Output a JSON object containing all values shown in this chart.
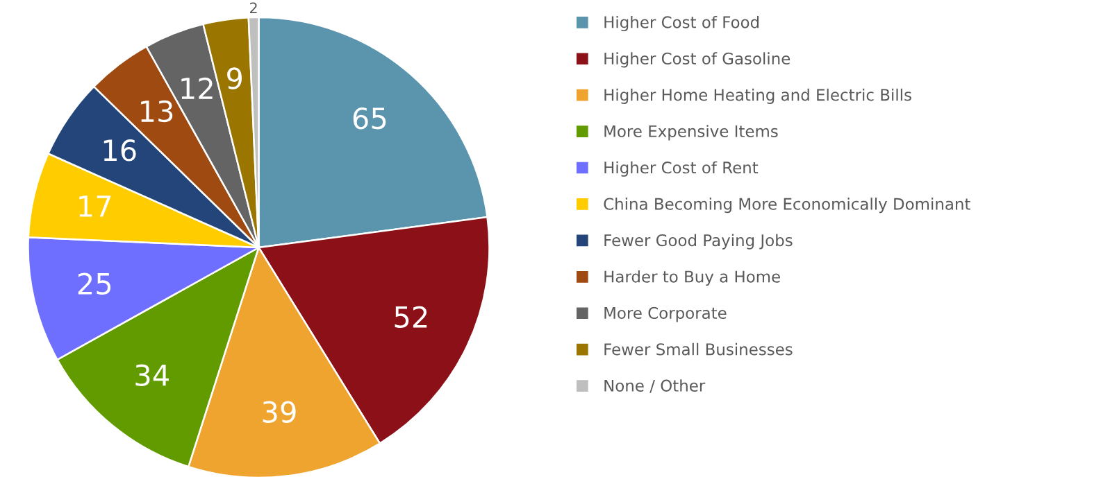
{
  "chart_data": {
    "type": "pie",
    "categories": [
      "Higher Cost of Food",
      "Higher Cost of Gasoline",
      "Higher Home Heating and Electric Bills",
      "More Expensive Items",
      "Higher Cost of Rent",
      "China Becoming More Economically Dominant",
      "Fewer Good Paying Jobs",
      "Harder to Buy a Home",
      "More Corporate",
      "Fewer Small Businesses",
      "None / Other"
    ],
    "values": [
      65,
      52,
      39,
      34,
      25,
      17,
      16,
      13,
      12,
      9,
      2
    ],
    "colors": [
      "#5b94ad",
      "#8c1018",
      "#eea42e",
      "#629b00",
      "#6e6eff",
      "#ffcc00",
      "#234579",
      "#9e4a10",
      "#646464",
      "#9a7500",
      "#bfbfbf"
    ],
    "data_labels": true,
    "legend": "right"
  }
}
